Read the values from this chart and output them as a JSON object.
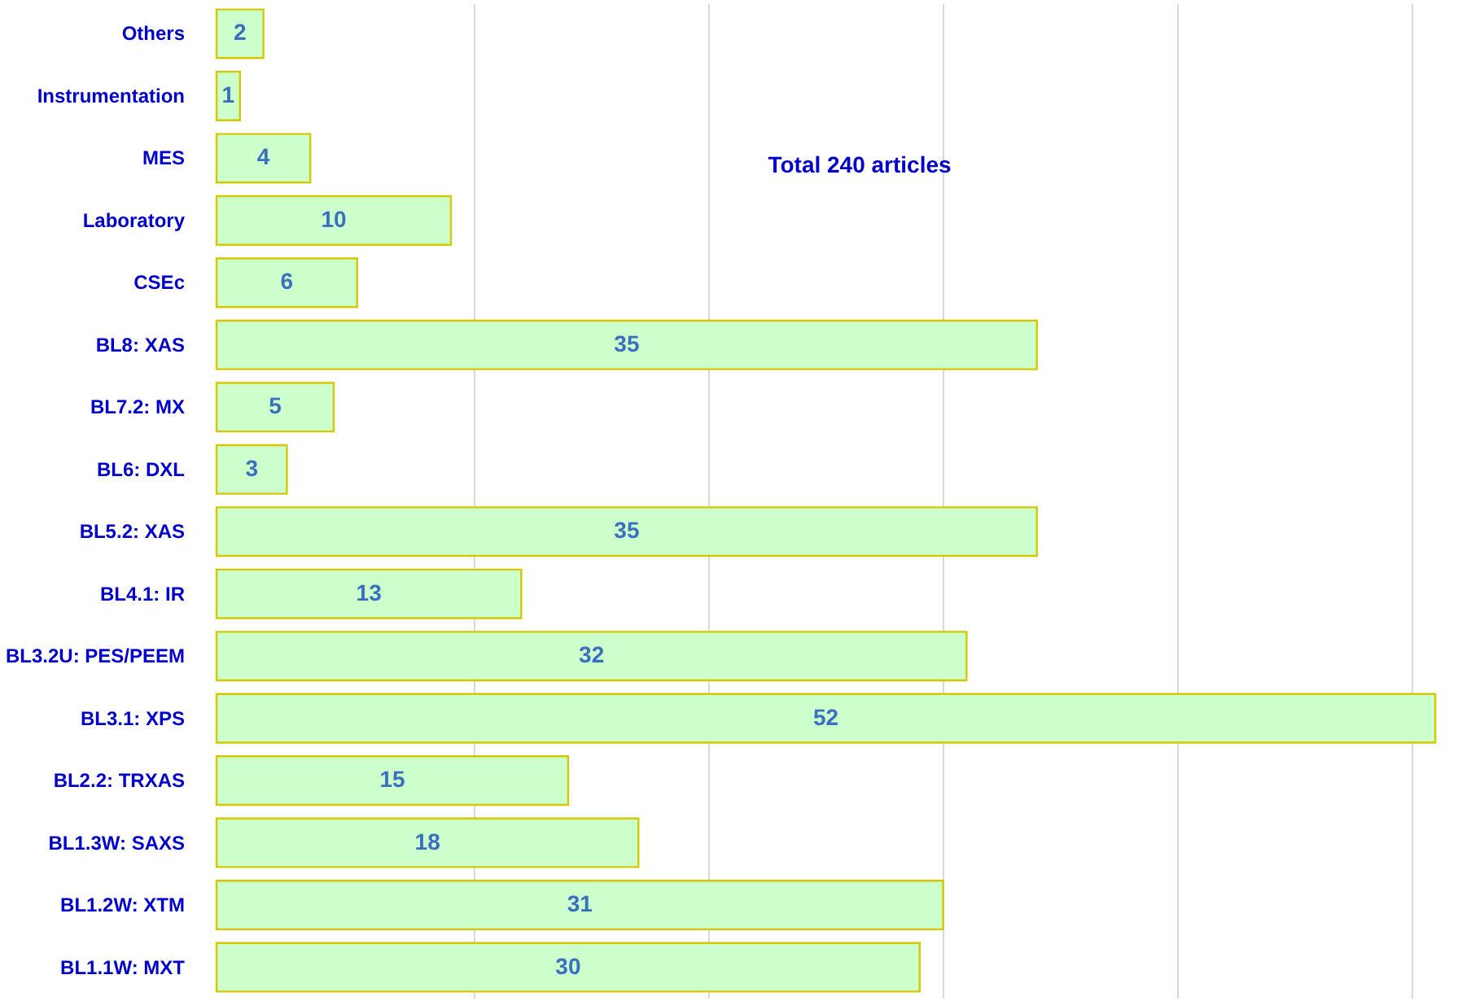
{
  "chart_data": {
    "type": "bar",
    "orientation": "horizontal",
    "categories": [
      "Others",
      "Instrumentation",
      "MES",
      "Laboratory",
      "CSEc",
      "BL8: XAS",
      "BL7.2: MX",
      "BL6: DXL",
      "BL5.2: XAS",
      "BL4.1: IR",
      "BL3.2U: PES/PEEM",
      "BL3.1: XPS",
      "BL2.2: TRXAS",
      "BL1.3W: SAXS",
      "BL1.2W: XTM",
      "BL1.1W: MXT"
    ],
    "values": [
      2,
      1,
      4,
      10,
      6,
      35,
      5,
      3,
      35,
      13,
      32,
      52,
      15,
      18,
      31,
      30
    ],
    "color": "#ccffcc",
    "data_labels": true,
    "xlim": [
      0,
      53
    ],
    "xticks": [
      {
        "value": 11,
        "label": null
      },
      {
        "value": 21,
        "label": null
      },
      {
        "value": 31,
        "label": null
      },
      {
        "value": 41,
        "label": null
      },
      {
        "value": 51,
        "label": null
      }
    ],
    "grid": "x",
    "tick_labels": "y",
    "annotations": [
      "Total 240 articles"
    ]
  }
}
